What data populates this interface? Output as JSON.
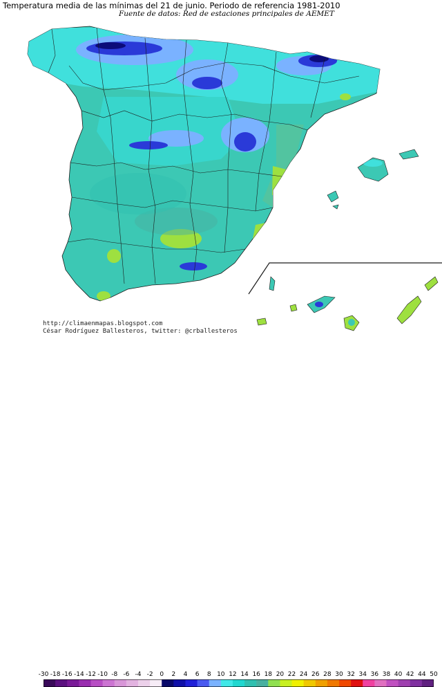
{
  "header": {
    "title": "Temperatura media de las mínimas del 21 de junio. Periodo de referencia 1981-2010",
    "subtitle": "Fuente de datos: Red de estaciones principales de AEMET"
  },
  "credits": {
    "blog": "http://climaenmapas.blogspot.com",
    "author": "César Rodríguez Ballesteros, twitter: @crballesteros"
  },
  "legend": {
    "labels": [
      "-30",
      "-18",
      "-16",
      "-14",
      "-12",
      "-10",
      "-8",
      "-6",
      "-4",
      "-2",
      "0",
      "2",
      "4",
      "6",
      "8",
      "10",
      "12",
      "14",
      "16",
      "18",
      "20",
      "22",
      "24",
      "26",
      "28",
      "30",
      "32",
      "34",
      "36",
      "38",
      "40",
      "42",
      "44",
      "50"
    ],
    "colors": [
      "#3a0a5a",
      "#5c1080",
      "#7a1a98",
      "#9a2eb0",
      "#b84ec4",
      "#cc74d2",
      "#d896d8",
      "#e2b2e0",
      "#ecd0ea",
      "#f6ecf6",
      "#0a0a6a",
      "#1010a8",
      "#2020d8",
      "#4a5af0",
      "#7ab2ff",
      "#40e8e8",
      "#20d8d0",
      "#30c0b0",
      "#48b0a0",
      "#90e050",
      "#c8f020",
      "#f0f000",
      "#f0c800",
      "#f0a000",
      "#f07800",
      "#f04800",
      "#e01010",
      "#f040a0",
      "#e070c0",
      "#c050c0",
      "#a040b0",
      "#8030a0",
      "#602080"
    ]
  },
  "map": {
    "palette": {
      "sea": "#ffffff",
      "peninsula_mean": "#3cc8b4",
      "warm_coast": "#9ee040",
      "mountain_cold": "#2a3ad8",
      "mountain_peak": "#0c0c7a",
      "cool_upland": "#7ab2ff",
      "borders": "#1a1a1a"
    }
  }
}
